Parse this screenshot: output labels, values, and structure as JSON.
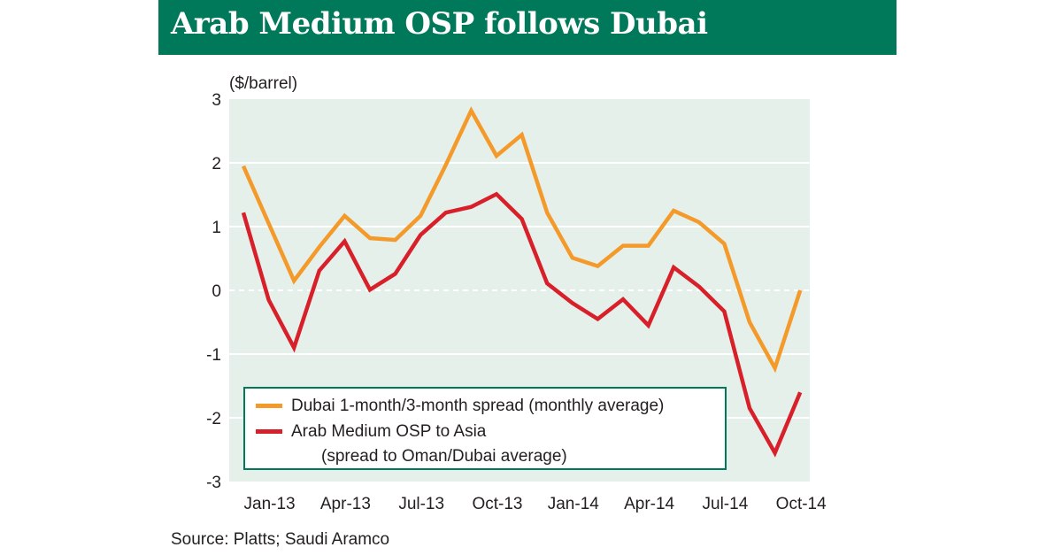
{
  "title": "Arab Medium OSP follows Dubai",
  "unit_label": "($/barrel)",
  "source": "Source: Platts; Saudi Aramco",
  "colors": {
    "header_bg": "#00795a",
    "plot_bg": "#e5f0ea",
    "series_dubai": "#f39a2a",
    "series_arab": "#d7202a"
  },
  "chart_data": {
    "type": "line",
    "ylim": [
      -3,
      3
    ],
    "yticks": [
      "3",
      "2",
      "1",
      "0",
      "-1",
      "-2",
      "-3"
    ],
    "ytick_values": [
      3,
      2,
      1,
      0,
      -1,
      -2,
      -3
    ],
    "xtick_labels": [
      "Jan-13",
      "Apr-13",
      "Jul-13",
      "Oct-13",
      "Jan-14",
      "Apr-14",
      "Jul-14",
      "Oct-14"
    ],
    "xtick_index": [
      1,
      4,
      7,
      10,
      13,
      16,
      19,
      22
    ],
    "grid": true,
    "legend_position": "bottom-left",
    "series": [
      {
        "name": "Dubai 1-month/3-month spread (monthly average)",
        "values": [
          1.95,
          1.05,
          0.15,
          0.68,
          1.17,
          0.82,
          0.79,
          1.17,
          1.97,
          2.82,
          2.11,
          2.44,
          1.22,
          0.51,
          0.38,
          0.7,
          0.7,
          1.25,
          1.07,
          0.73,
          -0.5,
          -1.22,
          0.0
        ]
      },
      {
        "name": "Arab Medium OSP to Asia",
        "name_sub": "(spread to Oman/Dubai average)",
        "values": [
          1.22,
          -0.15,
          -0.9,
          0.31,
          0.77,
          0.01,
          0.26,
          0.87,
          1.22,
          1.31,
          1.51,
          1.12,
          0.11,
          -0.2,
          -0.45,
          -0.14,
          -0.55,
          0.36,
          0.06,
          -0.33,
          -1.85,
          -2.55,
          -1.6
        ]
      }
    ]
  }
}
